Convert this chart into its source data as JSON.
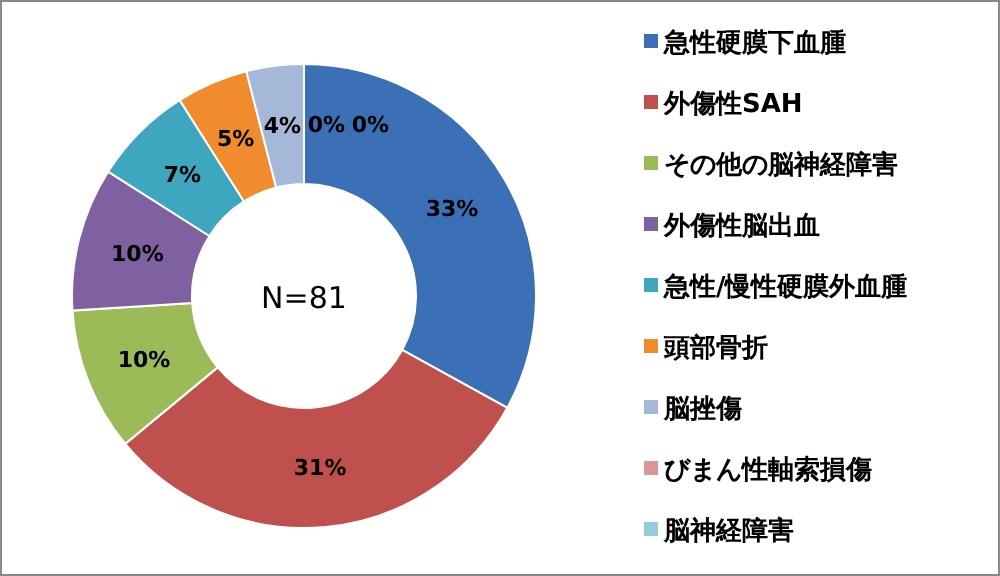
{
  "chart_data": {
    "type": "donut",
    "categories": [
      "急性硬膜下血腫",
      "外傷性SAH",
      "その他の脳神経障害",
      "外傷性脳出血",
      "急性/慢性硬膜外血腫",
      "頭部骨折",
      "脳挫傷",
      "びまん性軸索損傷",
      "脳神経障害"
    ],
    "values": [
      33,
      31,
      10,
      10,
      7,
      5,
      4,
      0,
      0
    ],
    "colors": [
      "#3b6fb6",
      "#c0504d",
      "#9bbb59",
      "#7f60a0",
      "#3fa6c0",
      "#f08c2e",
      "#a5b8d8",
      "#d99694",
      "#93cddd"
    ],
    "value_labels": [
      "33%",
      "31%",
      "10%",
      "10%",
      "7%",
      "5%",
      "4%",
      "0%",
      "0%"
    ],
    "legend": "right",
    "annotations": [
      "N=81"
    ]
  }
}
